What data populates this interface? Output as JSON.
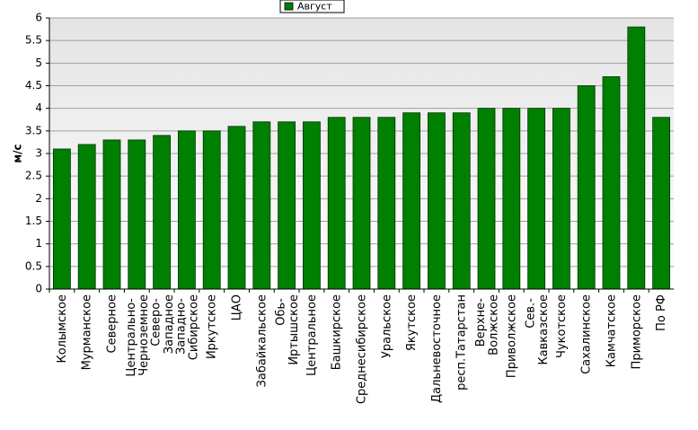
{
  "chart_data": {
    "type": "bar",
    "y_label": "м/с",
    "categories": [
      "Колымское",
      "Мурманское",
      "Северное",
      "Центрально-\nЧерноземное",
      "Северо-\nЗападное",
      "Западно-\nСибирское",
      "Иркутское",
      "ЦАО",
      "Забайкальское",
      "Обь-\nИртышское",
      "Центральное",
      "Башкирское",
      "Среднесибирское",
      "Уральское",
      "Якутское",
      "Дальневосточное",
      "респ.Татарстан",
      "Верхне-\nВолжское",
      "Приволжское",
      "Сев.-\nКавказское",
      "Чукотское",
      "Сахалинское",
      "Камчатское",
      "Приморское",
      "По РФ"
    ],
    "series": [
      {
        "name": "Август",
        "color": "#008000",
        "values": [
          3.1,
          3.2,
          3.3,
          3.3,
          3.4,
          3.5,
          3.5,
          3.6,
          3.7,
          3.7,
          3.7,
          3.8,
          3.8,
          3.8,
          3.9,
          3.9,
          3.9,
          4.0,
          4.0,
          4.0,
          4.0,
          4.5,
          4.7,
          5.8,
          3.8
        ]
      }
    ],
    "ylim": [
      0,
      6
    ],
    "yticks": [
      0,
      0.5,
      1,
      1.5,
      2,
      2.5,
      3,
      3.5,
      4,
      4.5,
      5,
      5.5,
      6
    ],
    "grid": true,
    "legend": "top"
  }
}
